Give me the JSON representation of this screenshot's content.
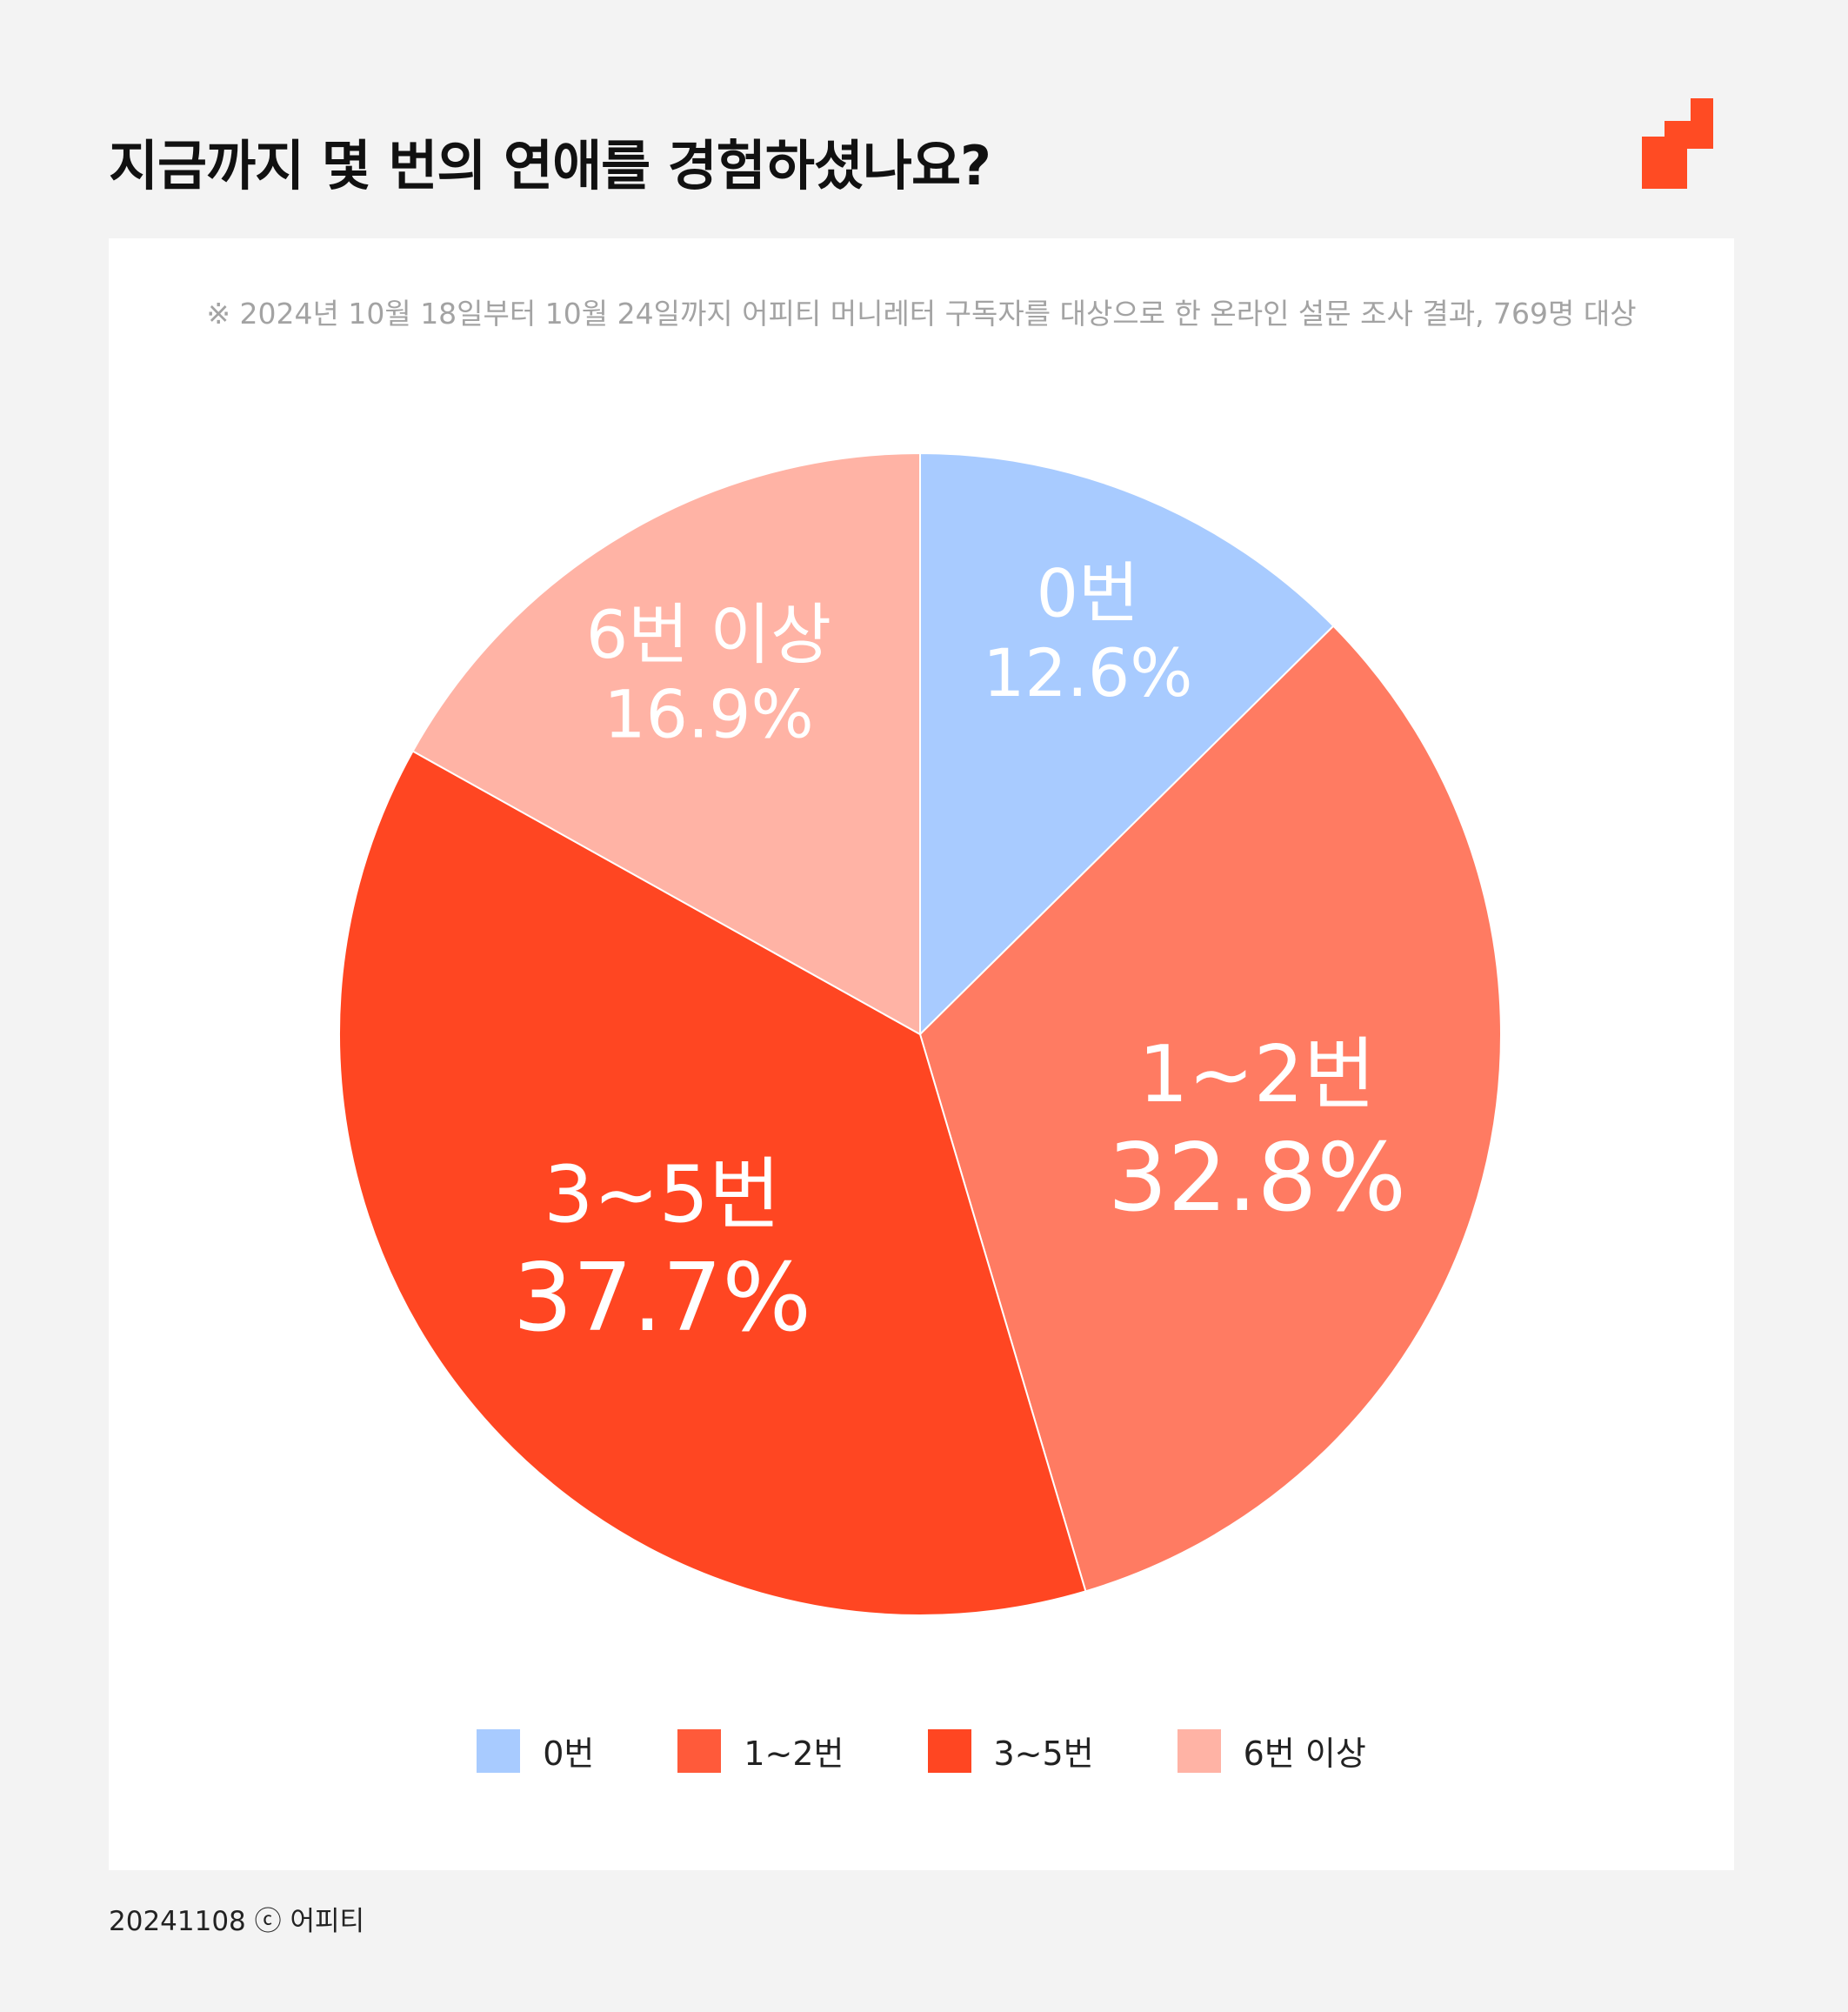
{
  "title": "지금까지 몇 번의 연애를 경험하셨나요?",
  "note": "※ 2024년 10월 18일부터 10월 24일까지 어피티 머니레터 구독자를 대상으로 한 온라인 설문 조사 결과, 769명 대상",
  "footer": "20241108 ⓒ 어피티",
  "brand_color": "#ff4b23",
  "chart_data": {
    "type": "pie",
    "categories": [
      "0번",
      "1~2번",
      "3~5번",
      "6번 이상"
    ],
    "values": [
      12.6,
      32.8,
      37.7,
      16.9
    ],
    "value_labels": [
      "12.6%",
      "32.8%",
      "37.7%",
      "16.9%"
    ],
    "colors": [
      "#a8cbff",
      "#ff7b62",
      "#ff4622",
      "#ffb3a5"
    ],
    "start_angle": "12 o'clock",
    "direction": "clockwise",
    "legend_position": "bottom"
  },
  "legend": [
    {
      "label": "0번",
      "color": "#a8cbff"
    },
    {
      "label": "1~2번",
      "color": "#ff5a3a"
    },
    {
      "label": "3~5번",
      "color": "#ff4622"
    },
    {
      "label": "6번 이상",
      "color": "#ffb3a5"
    }
  ]
}
